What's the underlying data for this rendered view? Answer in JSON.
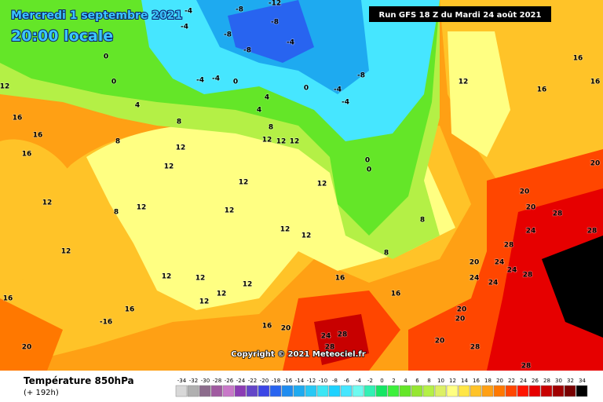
{
  "map": {
    "date": "Mercredi 1 septembre 2021",
    "time": "20:00 locale",
    "run": "Run GFS 18 Z du Mardi 24 août 2021",
    "copyright": "Copyright © 2021 Meteociel.fr",
    "labels": [
      "-8",
      "-12",
      "-8",
      "-8",
      "-4",
      "-4",
      "-4",
      "-8",
      "-4",
      "-4",
      "0",
      "-8",
      "-4",
      "-4",
      "0",
      "0",
      "0",
      "4",
      "8",
      "4",
      "4",
      "8",
      "12",
      "12",
      "12",
      "8",
      "12",
      "12",
      "12",
      "12",
      "12",
      "8",
      "12",
      "12",
      "12",
      "12",
      "12",
      "12",
      "12",
      "12",
      "12",
      "12",
      "16",
      "16",
      "16",
      "12",
      "16",
      "-16",
      "16",
      "20",
      "24",
      "28",
      "28",
      "16",
      "16",
      "20",
      "20",
      "20",
      "28",
      "28",
      "20",
      "24",
      "24",
      "28",
      "24",
      "24",
      "28",
      "24",
      "20",
      "20",
      "28",
      "28",
      "12",
      "16",
      "16",
      "16",
      "20",
      "8",
      "8",
      "0",
      "0",
      "20",
      "16"
    ]
  },
  "legend": {
    "title": "Température 850hPa",
    "subtitle": "(+ 192h)",
    "items": [
      {
        "value": -34,
        "color": "#d8d8d8"
      },
      {
        "value": -32,
        "color": "#b0b0b0"
      },
      {
        "value": -30,
        "color": "#8c6c8c"
      },
      {
        "value": -28,
        "color": "#a05aa0"
      },
      {
        "value": -26,
        "color": "#c878c8"
      },
      {
        "value": -24,
        "color": "#8c3cb4"
      },
      {
        "value": -22,
        "color": "#6446c8"
      },
      {
        "value": -20,
        "color": "#3c46e6"
      },
      {
        "value": -18,
        "color": "#2864f0"
      },
      {
        "value": -16,
        "color": "#1e8cf0"
      },
      {
        "value": -14,
        "color": "#1eaaf0"
      },
      {
        "value": -12,
        "color": "#28c8f5"
      },
      {
        "value": -10,
        "color": "#3ce6f5"
      },
      {
        "value": -8,
        "color": "#1ed2ff"
      },
      {
        "value": -6,
        "color": "#46e6ff"
      },
      {
        "value": -4,
        "color": "#6efaf0"
      },
      {
        "value": -2,
        "color": "#32f0b4"
      },
      {
        "value": 0,
        "color": "#14e664"
      },
      {
        "value": 2,
        "color": "#3cf03c"
      },
      {
        "value": 4,
        "color": "#64e628"
      },
      {
        "value": 6,
        "color": "#96e632"
      },
      {
        "value": 8,
        "color": "#b4f046"
      },
      {
        "value": 10,
        "color": "#dcf064"
      },
      {
        "value": 12,
        "color": "#ffff82"
      },
      {
        "value": 14,
        "color": "#ffe646"
      },
      {
        "value": 16,
        "color": "#ffc328"
      },
      {
        "value": 18,
        "color": "#ffa014"
      },
      {
        "value": 20,
        "color": "#ff7800"
      },
      {
        "value": 22,
        "color": "#ff4600"
      },
      {
        "value": 24,
        "color": "#ff1400"
      },
      {
        "value": 26,
        "color": "#e60000"
      },
      {
        "value": 28,
        "color": "#c80000"
      },
      {
        "value": 30,
        "color": "#a00000"
      },
      {
        "value": 32,
        "color": "#780000"
      },
      {
        "value": 34,
        "color": "#000000"
      }
    ]
  }
}
